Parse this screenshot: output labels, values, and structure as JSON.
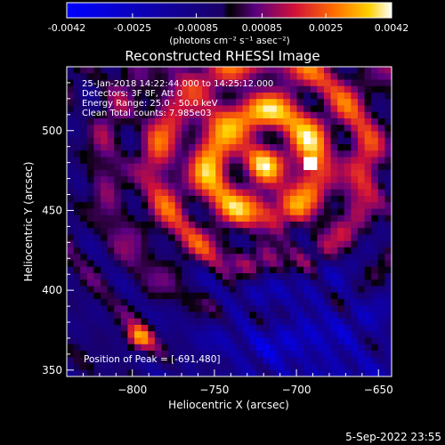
{
  "chart_data": {
    "type": "heatmap",
    "title": "Reconstructed RHESSI Image",
    "xlabel": "Heliocentric X (arcsec)",
    "ylabel": "Heliocentric Y (arcsec)",
    "xlim": [
      -840,
      -642
    ],
    "ylim": [
      346,
      540
    ],
    "xticks": [
      -800,
      -750,
      -700,
      -650
    ],
    "yticks": [
      350,
      400,
      450,
      500
    ],
    "colorbar": {
      "ticks": [
        "-0.0042",
        "-0.0025",
        "-0.00085",
        "0.00085",
        "0.0025",
        "0.0042"
      ],
      "range": [
        -0.0042,
        0.0042
      ],
      "unit_label": "(photons cm⁻² s⁻¹ asec⁻²)"
    },
    "annotations": [
      "25-Jan-2018 14:22:44.000 to 14:25:12.000",
      "Detectors: 3F 8F, Att 0",
      "Energy Range: 25.0 - 50.0 keV",
      "Clean    Total counts: 7.985e03"
    ],
    "peak_label": "Position of Peak = [-691,480]",
    "peak": [
      -691,
      480
    ],
    "grid": false,
    "footer_date": "5-Sep-2022 23:55"
  }
}
